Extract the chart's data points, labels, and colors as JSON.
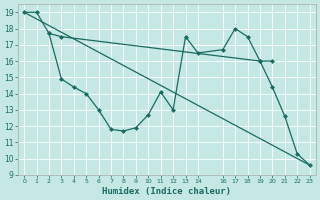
{
  "xlabel": "Humidex (Indice chaleur)",
  "xlim": [
    -0.5,
    23.5
  ],
  "ylim": [
    9,
    19.5
  ],
  "yticks": [
    9,
    10,
    11,
    12,
    13,
    14,
    15,
    16,
    17,
    18,
    19
  ],
  "xtick_positions": [
    0,
    1,
    2,
    3,
    4,
    5,
    6,
    7,
    8,
    9,
    10,
    11,
    12,
    13,
    14,
    16,
    17,
    18,
    19,
    20,
    21,
    22,
    23
  ],
  "xtick_labels": [
    "0",
    "1",
    "2",
    "3",
    "4",
    "5",
    "6",
    "7",
    "8",
    "9",
    "10",
    "11",
    "12",
    "13",
    "14",
    "16",
    "17",
    "18",
    "19",
    "20",
    "21",
    "22",
    "23"
  ],
  "bg_color": "#c5e8e5",
  "line_color": "#1a6b62",
  "grid_color": "#ffffff",
  "line1_x": [
    0,
    1,
    2,
    3,
    19,
    20
  ],
  "line1_y": [
    19.0,
    19.0,
    17.7,
    17.5,
    16.0,
    16.0
  ],
  "line2_x": [
    2,
    3,
    4,
    5,
    6,
    7,
    8,
    9,
    10,
    11,
    12,
    13,
    14,
    16,
    17,
    18,
    19,
    20,
    21,
    22,
    23
  ],
  "line2_y": [
    17.7,
    14.9,
    14.4,
    14.0,
    13.0,
    11.8,
    11.7,
    11.9,
    12.7,
    14.1,
    13.0,
    17.5,
    16.5,
    16.7,
    18.0,
    17.5,
    16.0,
    14.4,
    12.6,
    10.3,
    9.6
  ],
  "line3_x": [
    0,
    23
  ],
  "line3_y": [
    19.0,
    9.6
  ]
}
